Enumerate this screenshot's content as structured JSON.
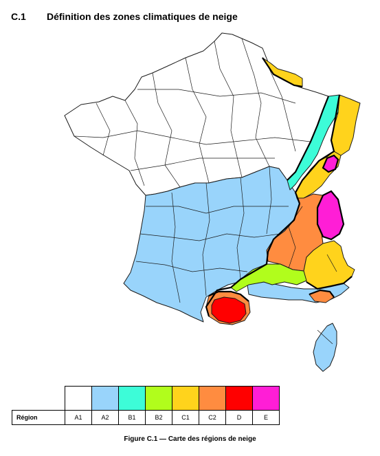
{
  "section": {
    "number": "C.1",
    "title": "Définition des zones climatiques de neige"
  },
  "legend": {
    "row_label": "Région",
    "zones": [
      {
        "code": "A1",
        "color": "#ffffff"
      },
      {
        "code": "A2",
        "color": "#99d4fb"
      },
      {
        "code": "B1",
        "color": "#3dfcd8"
      },
      {
        "code": "B2",
        "color": "#b1fd1c"
      },
      {
        "code": "C1",
        "color": "#ffd31c"
      },
      {
        "code": "C2",
        "color": "#ff8c40"
      },
      {
        "code": "D",
        "color": "#ff0000"
      },
      {
        "code": "E",
        "color": "#ff1ed6"
      }
    ]
  },
  "caption": "Figure C.1 — Carte des régions de neige"
}
